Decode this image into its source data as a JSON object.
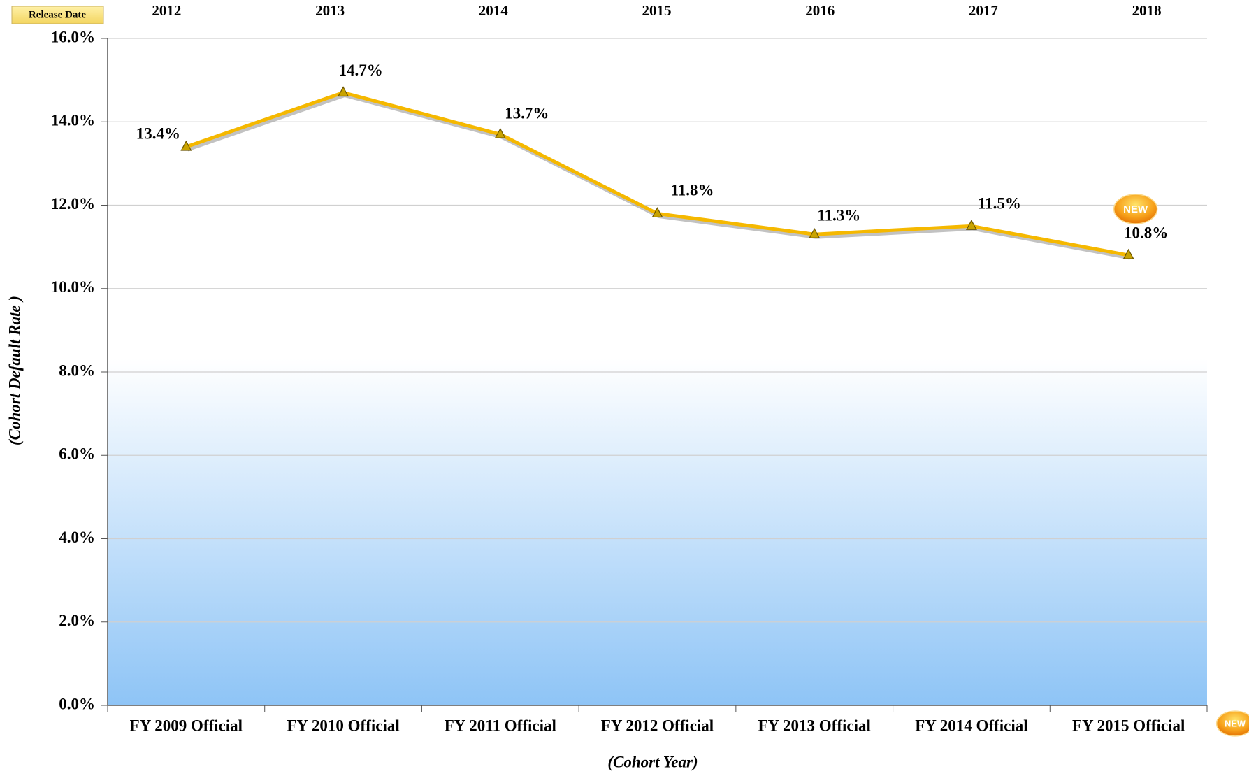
{
  "chart_data": {
    "type": "line",
    "release_label": "Release Date",
    "release_dates": [
      2012,
      2013,
      2014,
      2015,
      2016,
      2017,
      2018
    ],
    "categories": [
      "FY 2009 Official",
      "FY 2010 Official",
      "FY 2011 Official",
      "FY 2012 Official",
      "FY 2013 Official",
      "FY 2014 Official",
      "FY 2015 Official"
    ],
    "values": [
      13.4,
      14.7,
      13.7,
      11.8,
      11.3,
      11.5,
      10.8
    ],
    "value_labels": [
      "13.4%",
      "14.7%",
      "13.7%",
      "11.8%",
      "11.3%",
      "11.5%",
      "10.8%"
    ],
    "color": "#f5b800",
    "ylim": [
      0,
      16
    ],
    "yticks": [
      {
        "value": 0,
        "label": "0.0%"
      },
      {
        "value": 2,
        "label": "2.0%"
      },
      {
        "value": 4,
        "label": "4.0%"
      },
      {
        "value": 6,
        "label": "6.0%"
      },
      {
        "value": 8,
        "label": "8.0%"
      },
      {
        "value": 10,
        "label": "10.0%"
      },
      {
        "value": 12,
        "label": "12.0%"
      },
      {
        "value": 14,
        "label": "14.0%"
      },
      {
        "value": 16,
        "label": "16.0%"
      }
    ],
    "grid": true,
    "ylabel": "(Cohort Default Rate )",
    "xlabel": "(Cohort Year)",
    "badge": "NEW"
  }
}
